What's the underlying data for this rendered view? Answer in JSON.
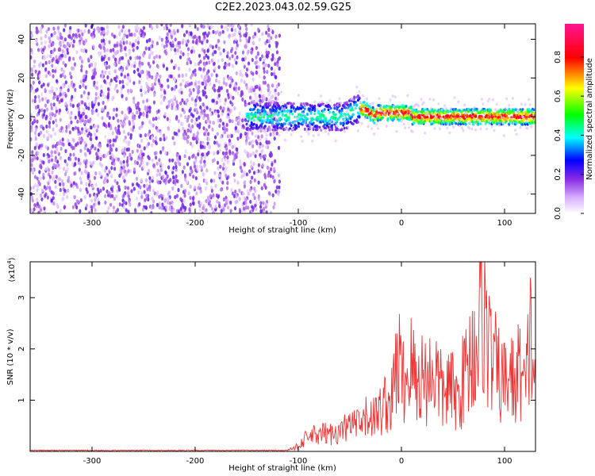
{
  "title": "C2E2.2023.043.02.59.G25",
  "chart_data": [
    {
      "type": "heatmap",
      "xlabel": "Height of straight line (km)",
      "ylabel": "Frequency (Hz)",
      "xlim": [
        -360,
        130
      ],
      "ylim": [
        -50,
        48
      ],
      "xticks": [
        -300,
        -200,
        -100,
        0,
        100
      ],
      "yticks": [
        -40,
        -20,
        0,
        20,
        40
      ],
      "colorbar": {
        "label": "Normalized spectral amplitude",
        "range": [
          0.0,
          0.97
        ],
        "ticks": [
          0.0,
          0.2,
          0.4,
          0.6,
          0.8
        ],
        "colormap": [
          "#ffffff",
          "#8a2be2",
          "#0000ff",
          "#00ffff",
          "#00ff00",
          "#ffff00",
          "#ff0000",
          "#ff1493"
        ]
      },
      "regions": [
        {
          "x_range": [
            -360,
            -125
          ],
          "freq_range": [
            -50,
            48
          ],
          "amplitude": [
            0.02,
            0.25
          ]
        },
        {
          "x_range": [
            -125,
            -40
          ],
          "freq_center": 0,
          "freq_width": 8,
          "amplitude": [
            0.1,
            0.5
          ]
        },
        {
          "x_range": [
            -40,
            130
          ],
          "freq_center": 0,
          "freq_width": 4,
          "amplitude": [
            0.3,
            0.9
          ]
        }
      ]
    },
    {
      "type": "line",
      "xlabel": "Height of straight line (km)",
      "ylabel": "SNR (10 * v/v)",
      "y_multiplier": "(x10",
      "y_multiplier_exp": "4",
      "y_multiplier_close": ")",
      "xlim": [
        -360,
        130
      ],
      "ylim": [
        0,
        3.7
      ],
      "xticks": [
        -300,
        -200,
        -100,
        0,
        100
      ],
      "yticks": [
        1,
        2,
        3
      ],
      "series": [
        {
          "color": "#ee3333",
          "x": [
            -360,
            -300,
            -250,
            -200,
            -150,
            -120,
            -105,
            -100,
            -95,
            -90,
            -85,
            -80,
            -75,
            -70,
            -65,
            -60,
            -55,
            -50,
            -45,
            -40,
            -35,
            -30,
            -25,
            -20,
            -15,
            -10,
            -5,
            -2,
            0,
            5,
            10,
            15,
            20,
            25,
            30,
            35,
            40,
            45,
            50,
            55,
            60,
            65,
            70,
            75,
            78,
            80,
            82,
            85,
            90,
            95,
            100,
            105,
            110,
            115,
            120,
            125,
            130
          ],
          "y": [
            0.02,
            0.02,
            0.02,
            0.02,
            0.03,
            0.03,
            0.05,
            0.15,
            0.25,
            0.3,
            0.35,
            0.3,
            0.4,
            0.35,
            0.45,
            0.4,
            0.5,
            0.55,
            0.6,
            0.5,
            0.7,
            0.8,
            0.75,
            0.9,
            1.1,
            1.0,
            1.8,
            2.0,
            1.5,
            1.6,
            1.9,
            1.4,
            1.7,
            1.5,
            1.8,
            1.6,
            1.2,
            1.4,
            1.3,
            1.1,
            1.6,
            1.9,
            2.2,
            2.5,
            3.5,
            3.0,
            2.8,
            2.2,
            1.9,
            1.6,
            1.5,
            1.7,
            1.4,
            1.9,
            1.2,
            2.6,
            1.3
          ]
        }
      ]
    }
  ]
}
